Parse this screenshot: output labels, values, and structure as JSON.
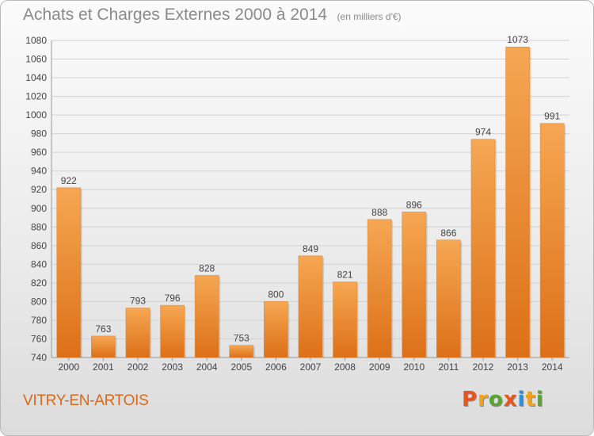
{
  "header": {
    "title": "Achats et Charges Externes 2000 à 2014",
    "unit": "(en milliers d'€)"
  },
  "footer": {
    "place": "VITRY-EN-ARTOIS",
    "brand_letters": [
      "P",
      "r",
      "o",
      "x",
      "i",
      "t",
      "i"
    ],
    "brand_colors": [
      "#e8561f",
      "#f1a31a",
      "#5aa531",
      "#e8561f",
      "#2e8fd6",
      "#f1a31a",
      "#5aa531"
    ]
  },
  "colors": {
    "bar_top": "#f6a752",
    "bar_bottom": "#dc7018",
    "grid": "#d2d2d2",
    "axis": "#9a9a9a",
    "text": "#444444"
  },
  "chart_data": {
    "type": "bar",
    "title": "Achats et Charges Externes 2000 à 2014",
    "subtitle": "(en milliers d'€)",
    "categories": [
      "2000",
      "2001",
      "2002",
      "2003",
      "2004",
      "2005",
      "2006",
      "2007",
      "2008",
      "2009",
      "2010",
      "2011",
      "2012",
      "2013",
      "2014"
    ],
    "values": [
      922,
      763,
      793,
      796,
      828,
      753,
      800,
      849,
      821,
      888,
      896,
      866,
      974,
      1073,
      991
    ],
    "ylim": [
      740,
      1080
    ],
    "yticks": [
      740,
      760,
      780,
      800,
      820,
      840,
      860,
      880,
      900,
      920,
      940,
      960,
      980,
      1000,
      1020,
      1040,
      1060,
      1080
    ],
    "grid": true,
    "legend": "none"
  }
}
